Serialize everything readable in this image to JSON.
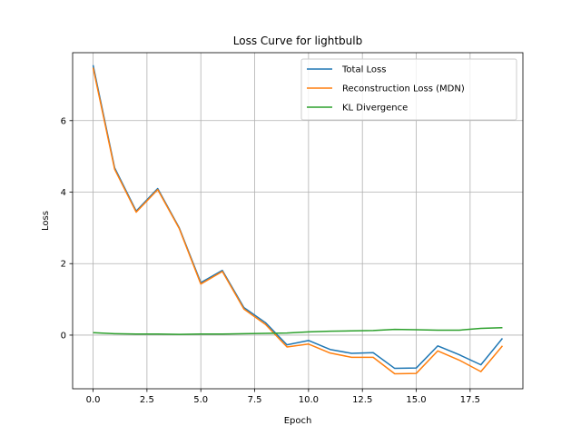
{
  "chart_data": {
    "type": "line",
    "title": "Loss Curve for lightbulb",
    "xlabel": "Epoch",
    "ylabel": "Loss",
    "xlim": [
      -0.95,
      19.95
    ],
    "ylim": [
      -1.5,
      7.9
    ],
    "xticks": [
      0.0,
      2.5,
      5.0,
      7.5,
      10.0,
      12.5,
      15.0,
      17.5
    ],
    "xtick_labels": [
      "0.0",
      "2.5",
      "5.0",
      "7.5",
      "10.0",
      "12.5",
      "15.0",
      "17.5"
    ],
    "yticks": [
      0,
      2,
      4,
      6
    ],
    "ytick_labels": [
      "0",
      "2",
      "4",
      "6"
    ],
    "grid": true,
    "legend_position": "top-right",
    "x": [
      0,
      1,
      2,
      3,
      4,
      5,
      6,
      7,
      8,
      9,
      10,
      11,
      12,
      13,
      14,
      15,
      16,
      17,
      18,
      19
    ],
    "series": [
      {
        "name": "Total Loss",
        "color": "#1f77b4",
        "values": [
          7.55,
          4.68,
          3.47,
          4.1,
          3.0,
          1.47,
          1.81,
          0.77,
          0.35,
          -0.27,
          -0.15,
          -0.4,
          -0.51,
          -0.49,
          -0.93,
          -0.92,
          -0.3,
          -0.55,
          -0.83,
          -0.09
        ]
      },
      {
        "name": "Reconstruction Loss (MDN)",
        "color": "#ff7f0e",
        "values": [
          7.48,
          4.64,
          3.44,
          4.07,
          2.98,
          1.43,
          1.78,
          0.73,
          0.3,
          -0.33,
          -0.25,
          -0.5,
          -0.62,
          -0.62,
          -1.08,
          -1.07,
          -0.44,
          -0.7,
          -1.02,
          -0.3
        ]
      },
      {
        "name": "KL Divergence",
        "color": "#2ca02c",
        "values": [
          0.07,
          0.04,
          0.03,
          0.03,
          0.02,
          0.03,
          0.03,
          0.04,
          0.05,
          0.06,
          0.09,
          0.11,
          0.12,
          0.13,
          0.16,
          0.15,
          0.14,
          0.14,
          0.19,
          0.21
        ]
      }
    ]
  }
}
